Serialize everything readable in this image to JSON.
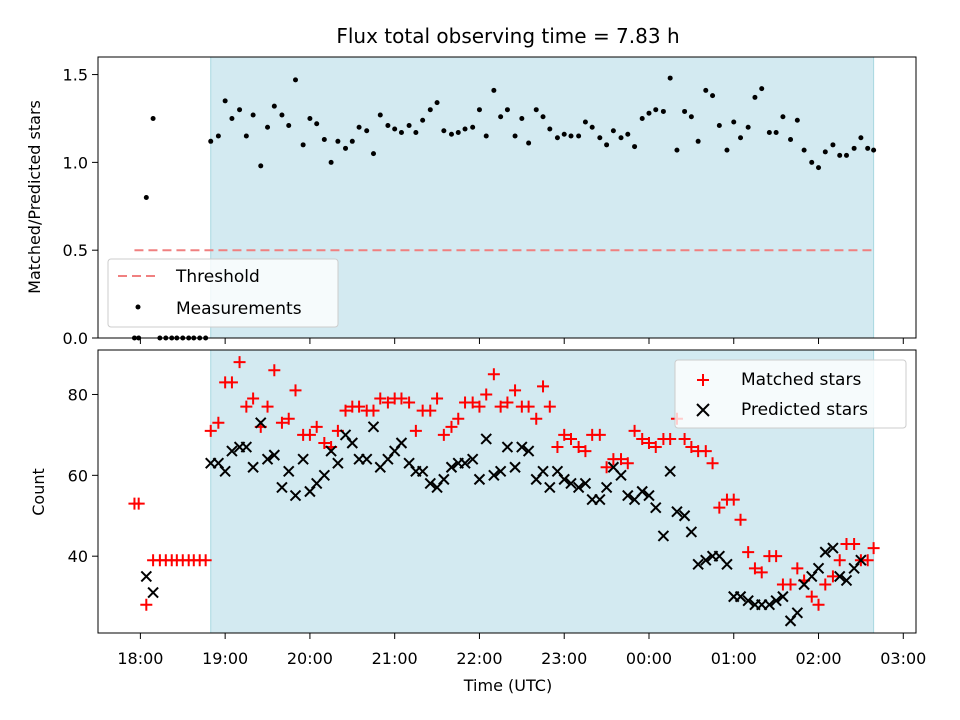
{
  "chart_data": [
    {
      "type": "scatter",
      "title": "Flux total observing time = 7.83 h",
      "xlabel": "",
      "ylabel": "Matched/Predicted stars",
      "xlim": [
        -0.5,
        9.15
      ],
      "ylim": [
        0,
        1.6
      ],
      "yticks": [
        0.0,
        0.5,
        1.0,
        1.5
      ],
      "ytick_labels": [
        "0.0",
        "0.5",
        "1.0",
        "1.5"
      ],
      "shaded_region": {
        "x": [
          0.83,
          8.65
        ],
        "color": "#d3eaf1"
      },
      "threshold": {
        "name": "Threshold",
        "y": 0.5,
        "x": [
          -0.07,
          8.65
        ],
        "color": "#f08080"
      },
      "legend": {
        "placement": "lower-left",
        "entries": [
          "Threshold",
          "Measurements"
        ]
      },
      "series": [
        {
          "name": "Measurements",
          "marker": "dot",
          "color": "#000000",
          "x": [
            -0.07,
            -0.02,
            0.07,
            0.15,
            0.23,
            0.3,
            0.37,
            0.43,
            0.5,
            0.57,
            0.63,
            0.7,
            0.77,
            0.83,
            0.92,
            1.0,
            1.08,
            1.17,
            1.25,
            1.33,
            1.42,
            1.5,
            1.58,
            1.67,
            1.75,
            1.83,
            1.92,
            2.0,
            2.08,
            2.17,
            2.25,
            2.33,
            2.42,
            2.5,
            2.58,
            2.67,
            2.75,
            2.83,
            2.92,
            3.0,
            3.08,
            3.17,
            3.25,
            3.33,
            3.42,
            3.5,
            3.58,
            3.67,
            3.75,
            3.83,
            3.92,
            4.0,
            4.08,
            4.17,
            4.25,
            4.33,
            4.42,
            4.5,
            4.58,
            4.67,
            4.75,
            4.83,
            4.92,
            5.0,
            5.08,
            5.17,
            5.25,
            5.33,
            5.42,
            5.5,
            5.58,
            5.67,
            5.75,
            5.83,
            5.92,
            6.0,
            6.08,
            6.17,
            6.25,
            6.33,
            6.42,
            6.5,
            6.58,
            6.67,
            6.75,
            6.83,
            6.92,
            7.0,
            7.08,
            7.17,
            7.25,
            7.33,
            7.42,
            7.5,
            7.58,
            7.67,
            7.75,
            7.83,
            7.92,
            8.0,
            8.08,
            8.17,
            8.25,
            8.33,
            8.42,
            8.5,
            8.58,
            8.65
          ],
          "y": [
            0.0,
            0.0,
            0.8,
            1.25,
            0.0,
            0.0,
            0.0,
            0.0,
            0.0,
            0.0,
            0.0,
            0.0,
            0.0,
            1.12,
            1.15,
            1.35,
            1.25,
            1.3,
            1.15,
            1.27,
            0.98,
            1.2,
            1.32,
            1.27,
            1.21,
            1.47,
            1.1,
            1.25,
            1.22,
            1.13,
            1.0,
            1.12,
            1.08,
            1.12,
            1.2,
            1.18,
            1.05,
            1.27,
            1.21,
            1.19,
            1.17,
            1.21,
            1.17,
            1.24,
            1.3,
            1.34,
            1.18,
            1.16,
            1.17,
            1.19,
            1.2,
            1.3,
            1.15,
            1.41,
            1.26,
            1.3,
            1.15,
            1.25,
            1.11,
            1.3,
            1.26,
            1.19,
            1.14,
            1.16,
            1.15,
            1.15,
            1.23,
            1.2,
            1.14,
            1.1,
            1.18,
            1.14,
            1.16,
            1.09,
            1.25,
            1.28,
            1.3,
            1.29,
            1.48,
            1.07,
            1.29,
            1.26,
            1.12,
            1.41,
            1.38,
            1.21,
            1.07,
            1.23,
            1.14,
            1.2,
            1.37,
            1.42,
            1.17,
            1.17,
            1.26,
            1.13,
            1.24,
            1.07,
            1.0,
            0.97,
            1.06,
            1.1,
            1.04,
            1.04,
            1.08,
            1.14,
            1.08,
            1.07
          ]
        }
      ]
    },
    {
      "type": "scatter",
      "title": "",
      "xlabel": "Time (UTC)",
      "ylabel": "Count",
      "xlim": [
        -0.5,
        9.15
      ],
      "ylim": [
        21,
        91
      ],
      "yticks": [
        40,
        60,
        80
      ],
      "ytick_labels": [
        "40",
        "60",
        "80"
      ],
      "xticks": [
        0,
        1,
        2,
        3,
        4,
        5,
        6,
        7,
        8,
        9
      ],
      "xtick_labels": [
        "18:00",
        "19:00",
        "20:00",
        "21:00",
        "22:00",
        "23:00",
        "00:00",
        "01:00",
        "02:00",
        "03:00"
      ],
      "shaded_region": {
        "x": [
          0.83,
          8.65
        ],
        "color": "#d3eaf1"
      },
      "legend": {
        "placement": "top-right",
        "entries": [
          "Matched stars",
          "Predicted stars"
        ]
      },
      "x": [
        -0.07,
        -0.02,
        0.07,
        0.15,
        0.23,
        0.3,
        0.37,
        0.43,
        0.5,
        0.57,
        0.63,
        0.7,
        0.77,
        0.83,
        0.92,
        1.0,
        1.08,
        1.17,
        1.25,
        1.33,
        1.42,
        1.5,
        1.58,
        1.67,
        1.75,
        1.83,
        1.92,
        2.0,
        2.08,
        2.17,
        2.25,
        2.33,
        2.42,
        2.5,
        2.58,
        2.67,
        2.75,
        2.83,
        2.92,
        3.0,
        3.08,
        3.17,
        3.25,
        3.33,
        3.42,
        3.5,
        3.58,
        3.67,
        3.75,
        3.83,
        3.92,
        4.0,
        4.08,
        4.17,
        4.25,
        4.33,
        4.42,
        4.5,
        4.58,
        4.67,
        4.75,
        4.83,
        4.92,
        5.0,
        5.08,
        5.17,
        5.25,
        5.33,
        5.42,
        5.5,
        5.58,
        5.67,
        5.75,
        5.83,
        5.92,
        6.0,
        6.08,
        6.17,
        6.25,
        6.33,
        6.42,
        6.5,
        6.58,
        6.67,
        6.75,
        6.83,
        6.92,
        7.0,
        7.08,
        7.17,
        7.25,
        7.33,
        7.42,
        7.5,
        7.58,
        7.67,
        7.75,
        7.83,
        7.92,
        8.0,
        8.08,
        8.17,
        8.25,
        8.33,
        8.42,
        8.5,
        8.58,
        8.65
      ],
      "series": [
        {
          "name": "Matched stars",
          "marker": "plus",
          "color": "#ff0000",
          "values": [
            53,
            53,
            28,
            39,
            39,
            39,
            39,
            39,
            39,
            39,
            39,
            39,
            39,
            71,
            73,
            83,
            83,
            88,
            77,
            79,
            72,
            77,
            86,
            73,
            74,
            81,
            70,
            70,
            72,
            68,
            67,
            71,
            76,
            77,
            77,
            76,
            76,
            79,
            78,
            79,
            79,
            78,
            71,
            76,
            76,
            79,
            70,
            72,
            74,
            78,
            78,
            77,
            80,
            85,
            77,
            78,
            81,
            77,
            77,
            74,
            82,
            77,
            67,
            70,
            69,
            67,
            66,
            70,
            70,
            62,
            64,
            64,
            63,
            71,
            69,
            68,
            67,
            69,
            69,
            74,
            69,
            67,
            66,
            66,
            63,
            52,
            54,
            54,
            49,
            41,
            37,
            36,
            40,
            40,
            33,
            33,
            37,
            34,
            30,
            28,
            33,
            35,
            39,
            43,
            43,
            39,
            39,
            42
          ]
        },
        {
          "name": "Predicted stars",
          "marker": "x",
          "color": "#000000",
          "values": [
            null,
            null,
            35,
            31,
            null,
            null,
            null,
            null,
            null,
            null,
            null,
            null,
            null,
            63,
            63,
            61,
            66,
            67,
            67,
            62,
            73,
            64,
            65,
            57,
            61,
            55,
            64,
            56,
            58,
            60,
            66,
            63,
            70,
            68,
            64,
            64,
            72,
            62,
            64,
            66,
            68,
            63,
            61,
            61,
            58,
            57,
            59,
            62,
            63,
            63,
            64,
            59,
            69,
            60,
            61,
            67,
            62,
            67,
            66,
            59,
            61,
            57,
            61,
            59,
            58,
            57,
            58,
            54,
            54,
            57,
            62,
            60,
            55,
            54,
            56,
            55,
            52,
            45,
            61,
            51,
            50,
            46,
            38,
            39,
            40,
            40,
            38,
            30,
            30,
            29,
            28,
            28,
            28,
            29,
            30,
            24,
            26,
            33,
            35,
            37,
            41,
            42,
            35,
            34,
            37,
            39
          ]
        }
      ]
    }
  ]
}
